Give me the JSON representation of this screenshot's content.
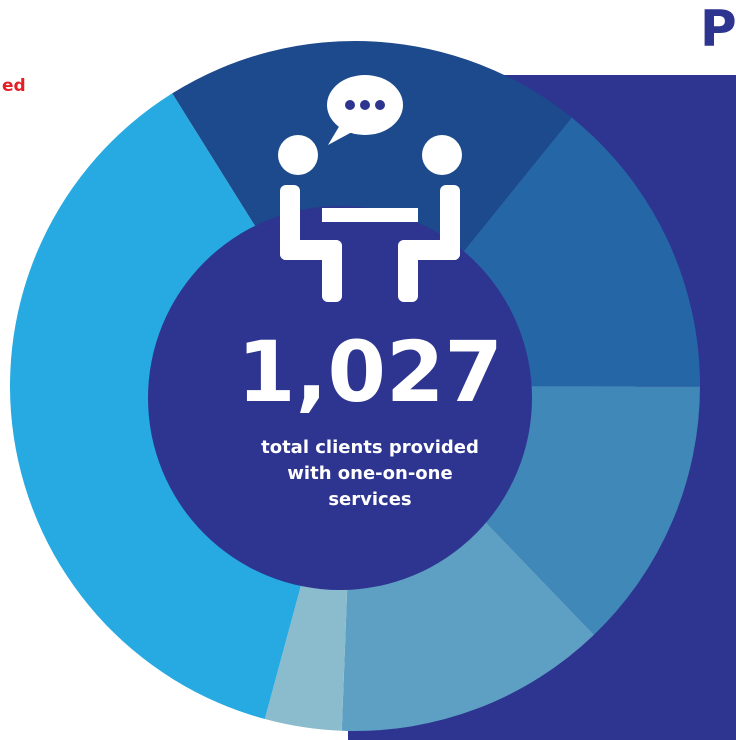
{
  "header": {
    "title": "P"
  },
  "side_text": "ed",
  "chart_data": {
    "type": "donut",
    "values": [
      19.7,
      14.2,
      12.8,
      12.8,
      3.6,
      36.9
    ],
    "colors": [
      "#1c4a8c",
      "#2566a7",
      "#3f88b8",
      "#5e9fc4",
      "#8bbccd",
      "#27a9e1"
    ],
    "center_value": "1,027",
    "center_caption": [
      "total clients provided",
      "with one-on-one",
      "services"
    ]
  }
}
